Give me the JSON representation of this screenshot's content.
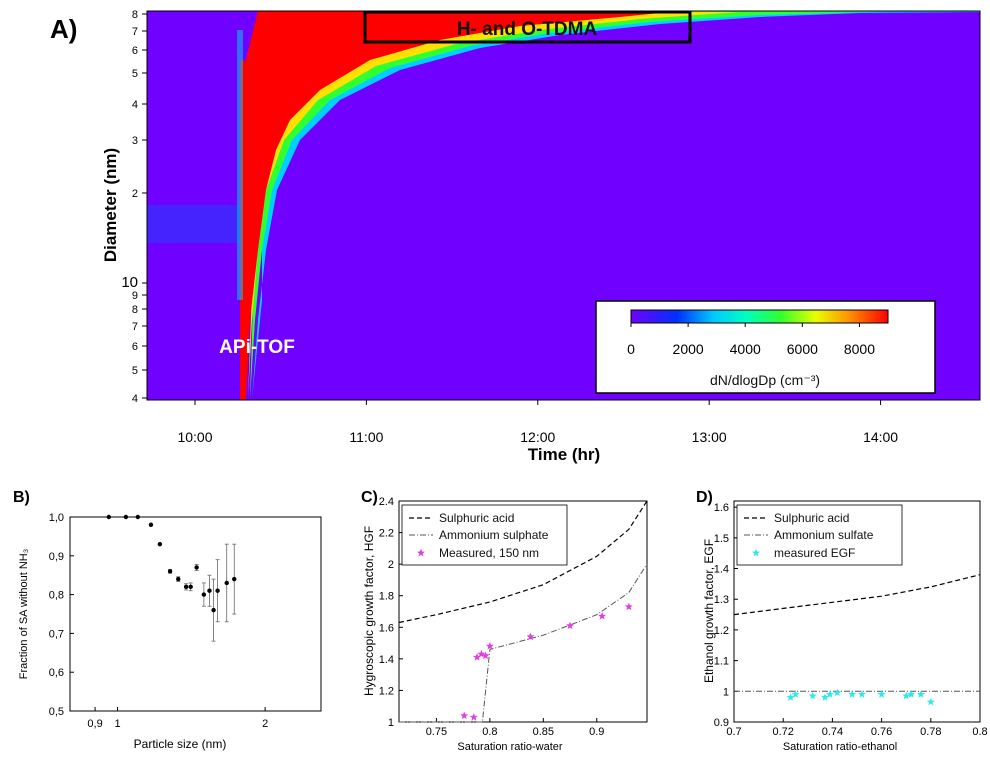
{
  "chart_data": [
    {
      "panel": "A)",
      "type": "heatmap",
      "title": "",
      "xlabel": "Time (hr)",
      "ylabel": "Diameter (nm)",
      "x_ticks": [
        "10:00",
        "11:00",
        "12:00",
        "13:00",
        "14:00"
      ],
      "xlim_hours": [
        9.72,
        14.58
      ],
      "ylim_nm": [
        0.4,
        8.2
      ],
      "y_ticks_upper": [
        "8",
        "7",
        "6",
        "5",
        "4",
        "3",
        "2"
      ],
      "y_ticks_lower": [
        "10",
        "9",
        "8",
        "7",
        "6",
        "5",
        "4"
      ],
      "annotations": [
        "H- and O-TDMA",
        "APi-TOF"
      ],
      "colorbar": {
        "label": "dN/dlogDp (cm⁻³)",
        "ticks": [
          "0",
          "2000",
          "4000",
          "6000",
          "8000"
        ],
        "range": [
          0,
          9000
        ]
      },
      "event_start_hour": 10.27
    },
    {
      "panel": "B)",
      "type": "scatter",
      "xlabel": "Particle size (nm)",
      "ylabel": "Fraction of SA without NH₃",
      "x_ticks": [
        "0,9",
        "1",
        "2"
      ],
      "y_ticks": [
        "0,5",
        "0,6",
        "0,7",
        "0,8",
        "0,9",
        "1,0"
      ],
      "xlim": [
        0.8,
        2.6
      ],
      "ylim": [
        0.5,
        1.0
      ],
      "x_scale": "log",
      "points": [
        {
          "x": 0.96,
          "y": 1.0,
          "err": 0
        },
        {
          "x": 1.04,
          "y": 1.0,
          "err": 0
        },
        {
          "x": 1.1,
          "y": 1.0,
          "err": 0
        },
        {
          "x": 1.17,
          "y": 0.98,
          "err": 0
        },
        {
          "x": 1.22,
          "y": 0.93,
          "err": 0
        },
        {
          "x": 1.28,
          "y": 0.86,
          "err": 0.005
        },
        {
          "x": 1.33,
          "y": 0.84,
          "err": 0.006
        },
        {
          "x": 1.38,
          "y": 0.82,
          "err": 0.008
        },
        {
          "x": 1.41,
          "y": 0.82,
          "err": 0.01
        },
        {
          "x": 1.45,
          "y": 0.87,
          "err": 0.008
        },
        {
          "x": 1.5,
          "y": 0.8,
          "err": 0.03
        },
        {
          "x": 1.54,
          "y": 0.81,
          "err": 0.04
        },
        {
          "x": 1.57,
          "y": 0.76,
          "err": 0.08
        },
        {
          "x": 1.6,
          "y": 0.81,
          "err": 0.08
        },
        {
          "x": 1.67,
          "y": 0.83,
          "err": 0.1
        },
        {
          "x": 1.73,
          "y": 0.84,
          "err": 0.09
        }
      ]
    },
    {
      "panel": "C)",
      "type": "line",
      "xlabel": "Saturation ratio-water",
      "ylabel": "Hygroscopic growth factor, HGF",
      "x_ticks": [
        "0.75",
        "0.8",
        "0.85",
        "0.9"
      ],
      "y_ticks": [
        "1",
        "1.2",
        "1.4",
        "1.6",
        "1.8",
        "2",
        "2.2",
        "2.4"
      ],
      "xlim": [
        0.715,
        0.947
      ],
      "ylim": [
        1.0,
        2.4
      ],
      "series": [
        {
          "name": "Sulphuric acid",
          "x": [
            0.715,
            0.75,
            0.8,
            0.85,
            0.9,
            0.93,
            0.947
          ],
          "y": [
            1.63,
            1.68,
            1.76,
            1.87,
            2.05,
            2.22,
            2.4
          ]
        },
        {
          "name": "Ammonium sulphate",
          "x": [
            0.715,
            0.78,
            0.793,
            0.8,
            0.85,
            0.9,
            0.93,
            0.947
          ],
          "y": [
            1.0,
            1.0,
            1.0,
            1.46,
            1.55,
            1.68,
            1.82,
            2.0
          ]
        },
        {
          "name": "Measured, 150 nm",
          "x": [
            0.776,
            0.785,
            0.788,
            0.792,
            0.796,
            0.8,
            0.838,
            0.875,
            0.905,
            0.93
          ],
          "y": [
            1.04,
            1.03,
            1.41,
            1.43,
            1.42,
            1.48,
            1.54,
            1.61,
            1.67,
            1.73
          ]
        }
      ]
    },
    {
      "panel": "D)",
      "type": "line",
      "xlabel": "Saturation ratio-ethanol",
      "ylabel": "Ethanol growth factor, EGF",
      "x_ticks": [
        "0.7",
        "0.72",
        "0.74",
        "0.76",
        "0.78",
        "0.8"
      ],
      "y_ticks": [
        "0.9",
        "1",
        "1.1",
        "1.2",
        "1.3",
        "1.4",
        "1.5",
        "1.6"
      ],
      "xlim": [
        0.7,
        0.8
      ],
      "ylim": [
        0.9,
        1.62
      ],
      "series": [
        {
          "name": "Sulphuric acid",
          "x": [
            0.7,
            0.72,
            0.74,
            0.76,
            0.78,
            0.8
          ],
          "y": [
            1.25,
            1.27,
            1.29,
            1.31,
            1.34,
            1.38
          ]
        },
        {
          "name": "Ammonium sulfate",
          "x": [
            0.7,
            0.8
          ],
          "y": [
            1.0,
            1.0
          ]
        },
        {
          "name": "measured EGF",
          "x": [
            0.723,
            0.725,
            0.732,
            0.737,
            0.739,
            0.742,
            0.748,
            0.752,
            0.76,
            0.77,
            0.772,
            0.776,
            0.78
          ],
          "y": [
            0.98,
            0.99,
            0.985,
            0.98,
            0.99,
            0.995,
            0.99,
            0.99,
            0.99,
            0.985,
            0.99,
            0.99,
            0.965
          ]
        }
      ]
    }
  ],
  "labels": {
    "panelA": "A)",
    "panelB": "B)",
    "panelC": "C)",
    "panelD": "D)"
  },
  "colors": {
    "heat_background": "#7000ff",
    "heat_high": "#ff0000",
    "measured_c": "#e040e0",
    "measured_d": "#30e8e8"
  }
}
